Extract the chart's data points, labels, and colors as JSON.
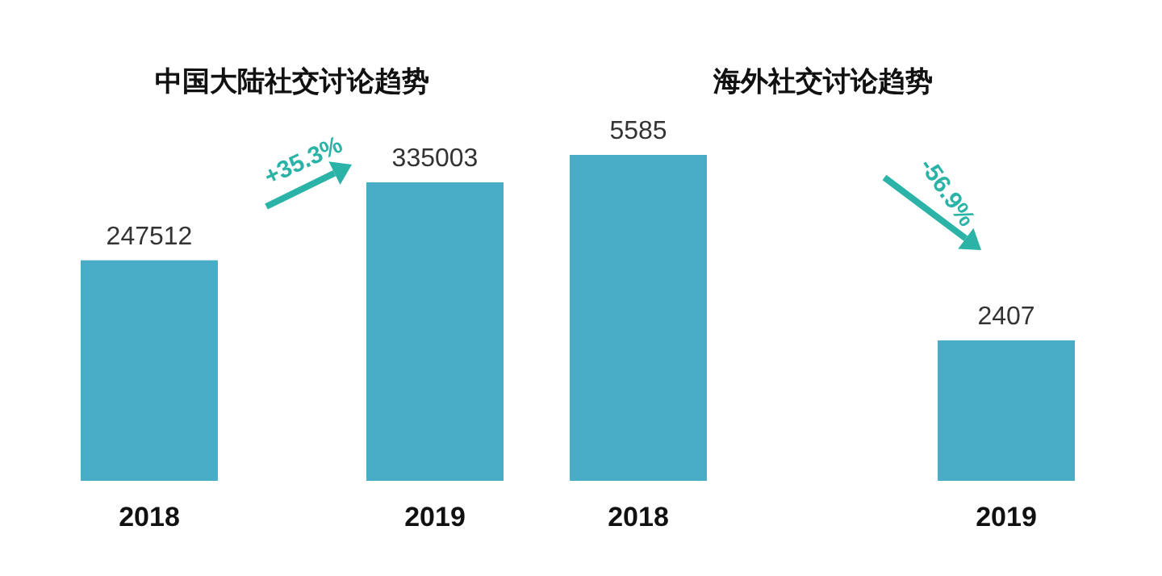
{
  "chart_data": [
    {
      "type": "bar",
      "title": "中国大陆社交讨论趋势",
      "categories": [
        "2018",
        "2019"
      ],
      "values": [
        247512,
        335003
      ],
      "color": "#4aadc8",
      "data_labels": true,
      "annotations": [
        "+35.3%"
      ]
    },
    {
      "type": "bar",
      "title": "海外社交讨论趋势",
      "categories": [
        "2018",
        "2019"
      ],
      "values": [
        5585,
        2407
      ],
      "color": "#4aadc8",
      "data_labels": true,
      "annotations": [
        "-56.9%"
      ]
    }
  ]
}
